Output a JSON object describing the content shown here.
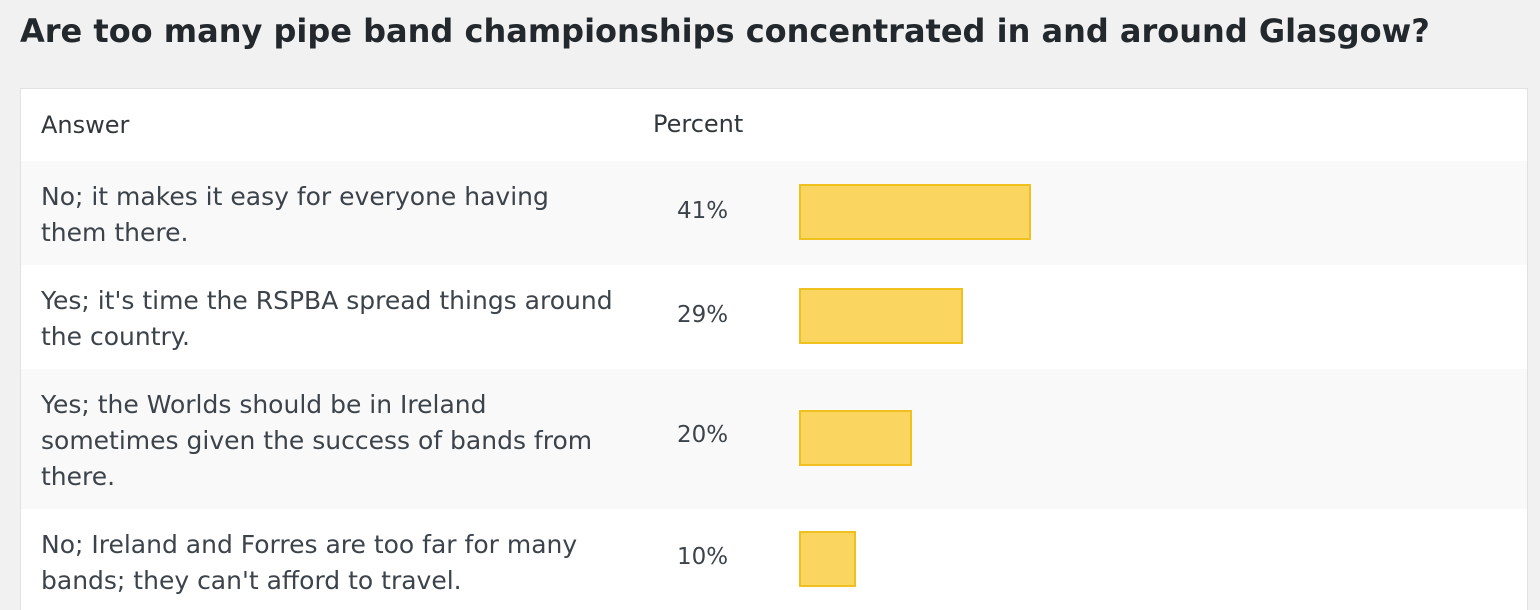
{
  "poll": {
    "title": "Are too many pipe band championships concentrated in and around Glasgow?",
    "headers": {
      "answer": "Answer",
      "percent": "Percent"
    },
    "bar_color": "#fad661",
    "bar_border_color": "#f0c020",
    "results": [
      {
        "answer": "No; it makes it easy for everyone having them there.",
        "percent_label": "41%",
        "percent": 41
      },
      {
        "answer": "Yes; it's time the RSPBA spread things around the country.",
        "percent_label": "29%",
        "percent": 29
      },
      {
        "answer": "Yes; the Worlds should be in Ireland sometimes given the success of bands from there.",
        "percent_label": "20%",
        "percent": 20
      },
      {
        "answer": "No; Ireland and Forres are too far for many bands; they can't afford to travel.",
        "percent_label": "10%",
        "percent": 10
      }
    ]
  }
}
